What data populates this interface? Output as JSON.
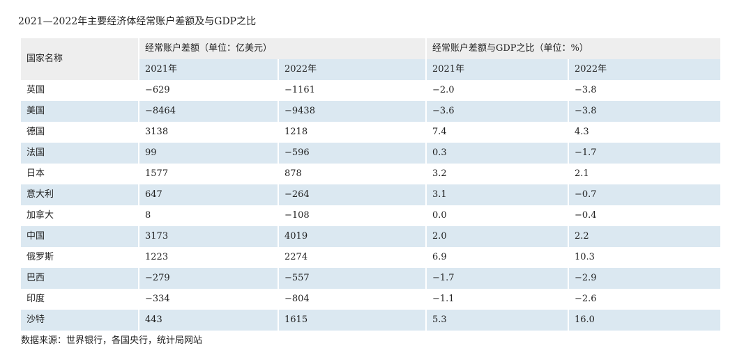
{
  "title": "2021—2022年主要经济体经常账户差额及与GDP之比",
  "table": {
    "row_header": "国家名称",
    "group1": "经常账户差额（单位：亿美元）",
    "group2": "经常账户差额与GDP之比（单位：%）",
    "sub": [
      "2021年",
      "2022年",
      "2021年",
      "2022年"
    ],
    "rows": [
      [
        "英国",
        "−629",
        "−1161",
        "−2.0",
        "−3.8"
      ],
      [
        "美国",
        "−8464",
        "−9438",
        "−3.6",
        "−3.8"
      ],
      [
        "德国",
        "3138",
        "1218",
        "7.4",
        "4.3"
      ],
      [
        "法国",
        "99",
        "−596",
        "0.3",
        "−1.7"
      ],
      [
        "日本",
        "1577",
        "878",
        "3.2",
        "2.1"
      ],
      [
        "意大利",
        "647",
        "−264",
        "3.1",
        "−0.7"
      ],
      [
        "加拿大",
        "8",
        "−108",
        "0.0",
        "−0.4"
      ],
      [
        "中国",
        "3173",
        "4019",
        "2.0",
        "2.2"
      ],
      [
        "俄罗斯",
        "1223",
        "2274",
        "6.9",
        "10.3"
      ],
      [
        "巴西",
        "−279",
        "−557",
        "−1.7",
        "−2.9"
      ],
      [
        "印度",
        "−334",
        "−804",
        "−1.1",
        "−2.6"
      ],
      [
        "沙特",
        "443",
        "1615",
        "5.3",
        "16.0"
      ]
    ]
  },
  "source_note": "数据来源：世界银行，各国央行，统计局网站"
}
